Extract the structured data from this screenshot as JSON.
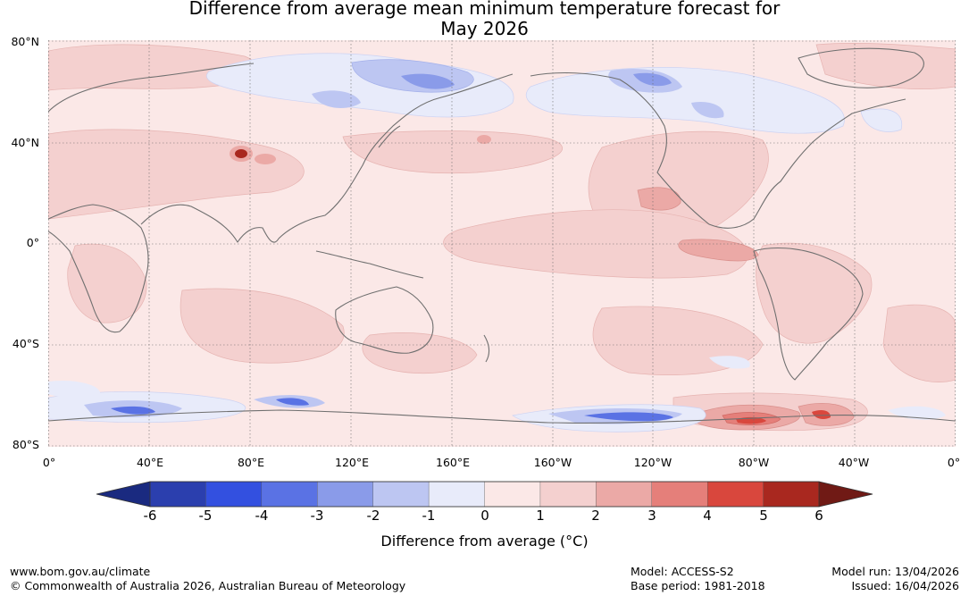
{
  "title": {
    "line1": "Difference from average mean minimum temperature forecast for",
    "line2": "May 2026"
  },
  "map": {
    "lat_labels": [
      "80°N",
      "40°N",
      "0°",
      "40°S",
      "80°S"
    ],
    "lon_labels": [
      "0°",
      "40°E",
      "80°E",
      "120°E",
      "160°E",
      "160°W",
      "120°W",
      "80°W",
      "40°W",
      "0°"
    ]
  },
  "colorbar": {
    "ticks": [
      "-6",
      "-5",
      "-4",
      "-3",
      "-2",
      "-1",
      "0",
      "1",
      "2",
      "3",
      "4",
      "5",
      "6"
    ],
    "label": "Difference from average (°C)",
    "colors": {
      "below": "#1a2a80",
      "bins": [
        "#2b3fae",
        "#3350e0",
        "#5a72e4",
        "#8a9be9",
        "#bdc6f2",
        "#e8ebfa",
        "#fbe8e7",
        "#f4d0cf",
        "#eba9a6",
        "#e57f7a",
        "#d9473d",
        "#a9281f"
      ],
      "above": "#701a15"
    }
  },
  "footer": {
    "url": "www.bom.gov.au/climate",
    "copyright": "© Commonwealth of Australia 2026, Australian Bureau of Meteorology",
    "model": "Model: ACCESS-S2",
    "base_period": "Base period: 1981-2018",
    "model_run": "Model run: 13/04/2026",
    "issued": "Issued: 16/04/2026"
  }
}
